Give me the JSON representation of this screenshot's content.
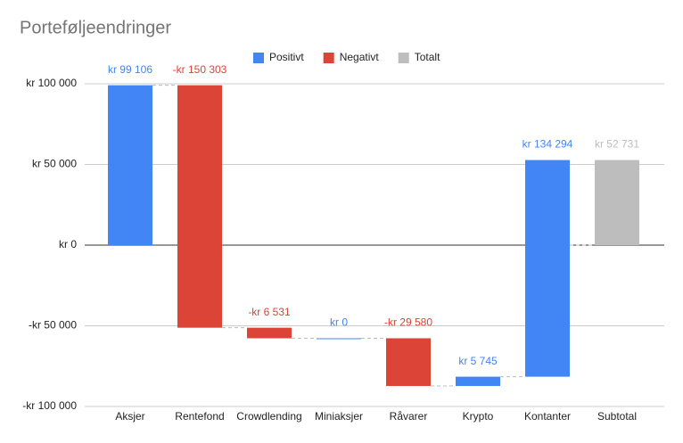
{
  "chart_data": {
    "type": "waterfall",
    "title": "Porteføljeendringer",
    "categories": [
      "Aksjer",
      "Rentefond",
      "Crowdlending",
      "Miniaksjer",
      "Råvarer",
      "Krypto",
      "Kontanter",
      "Subtotal"
    ],
    "series": [
      {
        "name": "Positivt",
        "color": "#4285f4",
        "role": "step",
        "values": [
          99106,
          null,
          null,
          0,
          null,
          5745,
          134294,
          null
        ],
        "value_labels": [
          "kr  99 106",
          null,
          null,
          "kr  0",
          null,
          "kr  5 745",
          "kr  134 294",
          null
        ]
      },
      {
        "name": "Negativt",
        "color": "#db4437",
        "role": "step",
        "values": [
          null,
          -150303,
          -6531,
          null,
          -29580,
          null,
          null,
          null
        ],
        "value_labels": [
          null,
          "-kr  150 303",
          "-kr  6 531",
          null,
          "-kr  29 580",
          null,
          null,
          null
        ]
      },
      {
        "name": "Totalt",
        "color": "#bdbdbd",
        "role": "total",
        "values": [
          null,
          null,
          null,
          null,
          null,
          null,
          null,
          52731
        ],
        "value_labels": [
          null,
          null,
          null,
          null,
          null,
          null,
          null,
          "kr  52 731"
        ]
      }
    ],
    "ylim": [
      -100000,
      100000
    ],
    "yticks": [
      {
        "value": -100000,
        "label": "-kr  100 000"
      },
      {
        "value": -50000,
        "label": "-kr  50 000"
      },
      {
        "value": 0,
        "label": "kr  0"
      },
      {
        "value": 50000,
        "label": "kr  50 000"
      },
      {
        "value": 100000,
        "label": "kr  100 000"
      }
    ],
    "grid": true,
    "legend": "top"
  }
}
